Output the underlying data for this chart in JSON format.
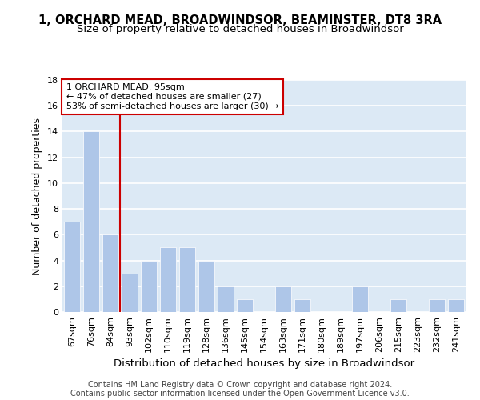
{
  "title": "1, ORCHARD MEAD, BROADWINDSOR, BEAMINSTER, DT8 3RA",
  "subtitle": "Size of property relative to detached houses in Broadwindsor",
  "xlabel": "Distribution of detached houses by size in Broadwindsor",
  "ylabel": "Number of detached properties",
  "categories": [
    "67sqm",
    "76sqm",
    "84sqm",
    "93sqm",
    "102sqm",
    "110sqm",
    "119sqm",
    "128sqm",
    "136sqm",
    "145sqm",
    "154sqm",
    "163sqm",
    "171sqm",
    "180sqm",
    "189sqm",
    "197sqm",
    "206sqm",
    "215sqm",
    "223sqm",
    "232sqm",
    "241sqm"
  ],
  "values": [
    7,
    14,
    6,
    3,
    4,
    5,
    5,
    4,
    2,
    1,
    0,
    2,
    1,
    0,
    0,
    2,
    0,
    1,
    0,
    1,
    1
  ],
  "bar_color": "#aec6e8",
  "bar_edge_color": "#ffffff",
  "background_color": "#dce9f5",
  "grid_color": "#ffffff",
  "vline_color": "#cc0000",
  "annotation_text": "1 ORCHARD MEAD: 95sqm\n← 47% of detached houses are smaller (27)\n53% of semi-detached houses are larger (30) →",
  "annotation_box_color": "#cc0000",
  "ylim": [
    0,
    18
  ],
  "yticks": [
    0,
    2,
    4,
    6,
    8,
    10,
    12,
    14,
    16,
    18
  ],
  "footer_line1": "Contains HM Land Registry data © Crown copyright and database right 2024.",
  "footer_line2": "Contains public sector information licensed under the Open Government Licence v3.0.",
  "title_fontsize": 10.5,
  "subtitle_fontsize": 9.5,
  "xlabel_fontsize": 9.5,
  "ylabel_fontsize": 9,
  "tick_fontsize": 8,
  "annotation_fontsize": 8,
  "footer_fontsize": 7
}
